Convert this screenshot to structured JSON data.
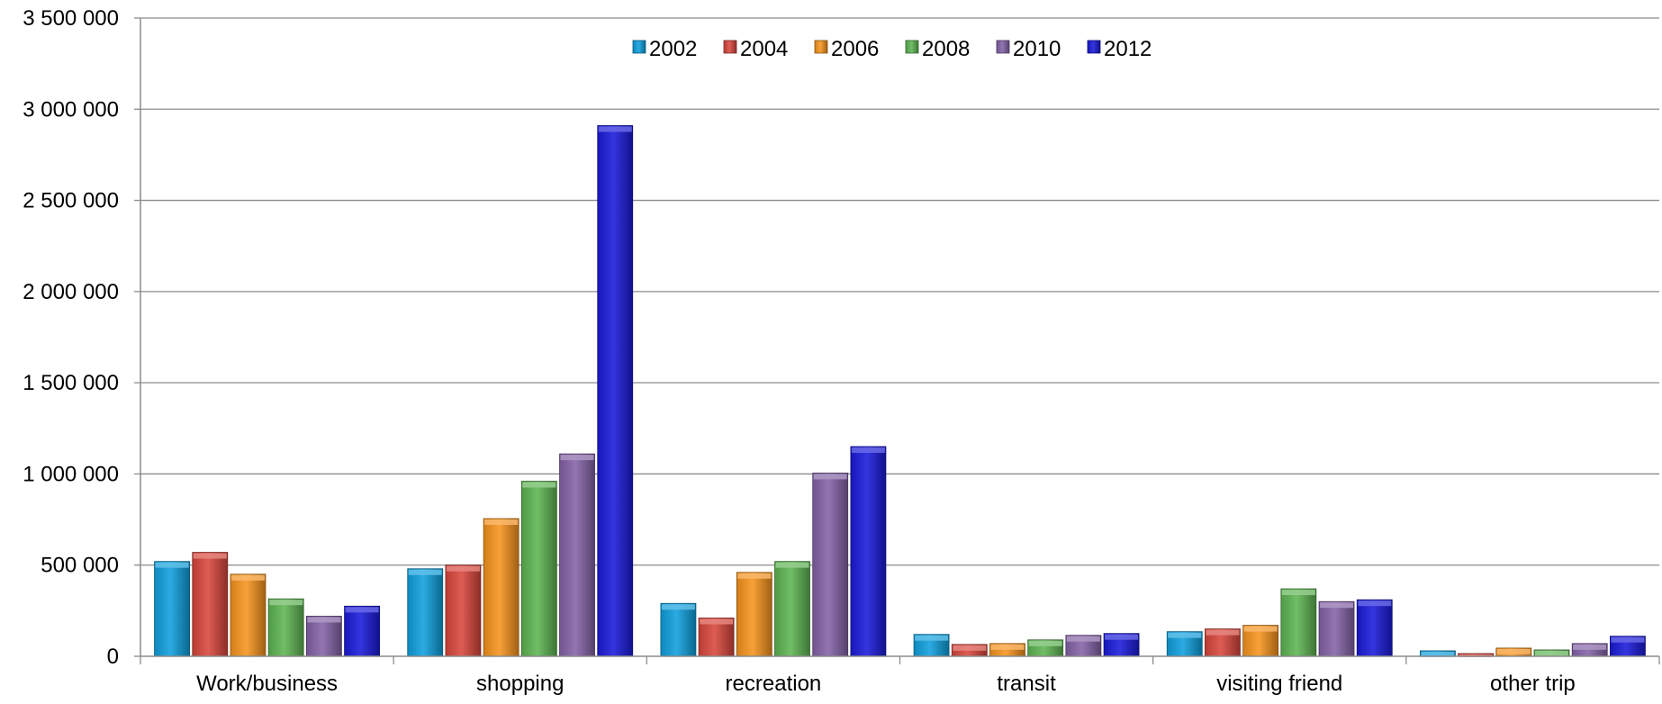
{
  "chart_data": {
    "type": "bar",
    "title": "",
    "xlabel": "",
    "ylabel": "",
    "ylim": [
      0,
      3500000
    ],
    "yticks": [
      0,
      500000,
      1000000,
      1500000,
      2000000,
      2500000,
      3000000,
      3500000
    ],
    "ytick_labels": [
      "0",
      "500 000",
      "1 000 000",
      "1 500 000",
      "2 000 000",
      "2 500 000",
      "3 000 000",
      "3 500 000"
    ],
    "grid": true,
    "legend_position": "top-center",
    "categories": [
      "Work/business",
      "shopping",
      "recreation",
      "transit",
      "visiting friend",
      "other trip"
    ],
    "series": [
      {
        "name": "2002",
        "color": "#0ea0de",
        "values": [
          520000,
          480000,
          290000,
          120000,
          135000,
          30000
        ]
      },
      {
        "name": "2004",
        "color": "#d9463c",
        "values": [
          570000,
          500000,
          210000,
          65000,
          150000,
          15000
        ]
      },
      {
        "name": "2006",
        "color": "#f7941d",
        "values": [
          450000,
          755000,
          460000,
          70000,
          170000,
          45000
        ]
      },
      {
        "name": "2008",
        "color": "#5eb552",
        "values": [
          315000,
          960000,
          520000,
          90000,
          370000,
          35000
        ]
      },
      {
        "name": "2010",
        "color": "#8462a8",
        "values": [
          220000,
          1110000,
          1005000,
          115000,
          300000,
          70000
        ]
      },
      {
        "name": "2012",
        "color": "#1a1adb",
        "values": [
          275000,
          2910000,
          1150000,
          125000,
          310000,
          110000
        ]
      }
    ]
  }
}
